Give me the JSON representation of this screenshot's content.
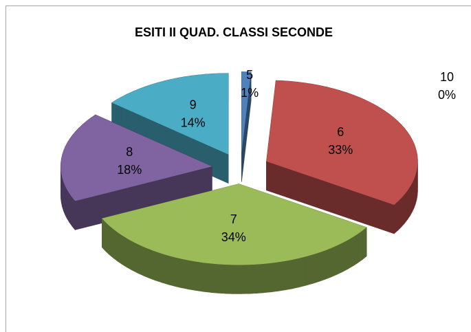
{
  "chart_data": {
    "type": "pie3d",
    "title": "ESITI II QUAD. CLASSI SECONDE",
    "categories": [
      "5",
      "6",
      "7",
      "8",
      "9",
      "10"
    ],
    "values": [
      1,
      33,
      34,
      18,
      14,
      0
    ],
    "value_labels": [
      "1%",
      "33%",
      "34%",
      "18%",
      "14%",
      "0%"
    ],
    "colors": [
      "#4f81bd",
      "#c0504d",
      "#9bbb59",
      "#8064a2",
      "#4bacc6",
      "#f79646"
    ],
    "exploded": true
  }
}
